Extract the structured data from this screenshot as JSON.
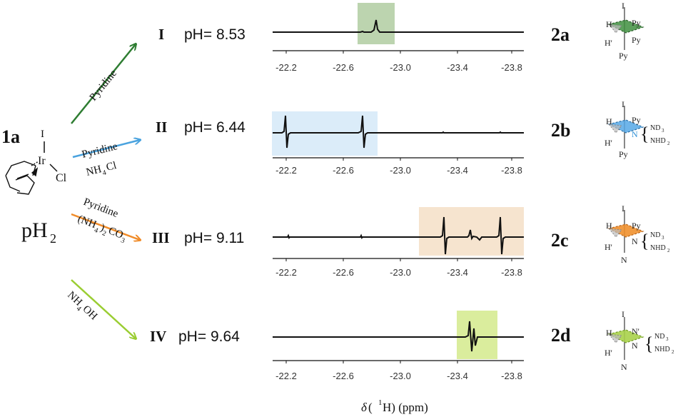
{
  "axis": {
    "ticks": [
      "-22.2",
      "-22.6",
      "-23.0",
      "-23.4",
      "-23.8"
    ],
    "xlabel_delta": "δ",
    "xlabel_rest": " (",
    "xlabel_sup": "1",
    "xlabel_end": "H) (ppm)"
  },
  "reactant": {
    "label": "1a",
    "I": "I",
    "Ir": "Ir",
    "Cl": "Cl",
    "ph2_main": "pH",
    "ph2_sub": "2"
  },
  "reagents": {
    "r1": "Pyridine",
    "r2_top": "Pyridine",
    "r2_bottom": "NH",
    "r2_bottom_sub": "4",
    "r2_bottom_end": "Cl",
    "r3_top": "Pyridine",
    "r3_bottom_a": "(NH",
    "r3_bottom_sub1": "4",
    "r3_bottom_b": ")",
    "r3_bottom_sub2": "2",
    "r3_bottom_c": "CO",
    "r3_bottom_sub3": "3",
    "r4_a": "NH",
    "r4_sub": "4",
    "r4_b": "OH"
  },
  "rows": [
    {
      "roman": "I",
      "ph": "pH= 8.53",
      "compound": "2a",
      "highlight": "#8fb87a"
    },
    {
      "roman": "II",
      "ph": "pH= 6.44",
      "compound": "2b",
      "highlight": "#cfe6f7"
    },
    {
      "roman": "III",
      "ph": "pH= 9.11",
      "compound": "2c",
      "highlight": "#f4ddc3"
    },
    {
      "roman": "IV",
      "ph": "pH= 9.64",
      "compound": "2d",
      "highlight": "#d4ea8c"
    }
  ],
  "complexes": {
    "a": {
      "top": "I",
      "h": "H",
      "hp": "H'",
      "r1": "Py",
      "r2": "Py",
      "bottom": "Py"
    },
    "b": {
      "top": "I",
      "h": "H",
      "hp": "H'",
      "r1": "Py",
      "r2": "N",
      "bottom": "Py",
      "nd3": "ND",
      "nd3_sub": "3",
      "nhd2": "NHD",
      "nhd2_sub": "2"
    },
    "c": {
      "top": "I",
      "h": "H",
      "hp": "H'",
      "r1": "Py",
      "r2": "N",
      "bottom": "N",
      "nd3": "ND",
      "nd3_sub": "3",
      "nhd2": "NHD",
      "nhd2_sub": "2"
    },
    "d": {
      "top": "I",
      "h": "H",
      "hp": "H'",
      "r1": "N'",
      "r2": "N",
      "bottom": "N",
      "nd3": "ND",
      "nd3_sub": "3",
      "nhd2": "NHD",
      "nhd2_sub": "2"
    }
  },
  "colors": {
    "arrow1": "#2e7d32",
    "arrow2": "#4aa3df",
    "arrow3": "#f08c2a",
    "arrow4": "#9acd32",
    "wedge_a": "#3f8f3f",
    "wedge_b": "#56a8e6",
    "wedge_c": "#f0902e",
    "wedge_d": "#a8d24a"
  }
}
